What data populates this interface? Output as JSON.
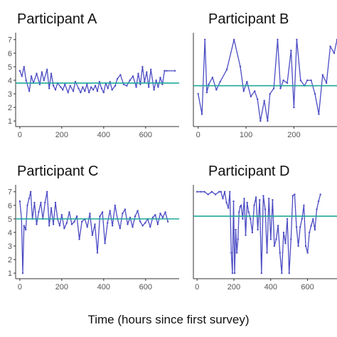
{
  "xlabel": "Time (hours since first survey)",
  "colors": {
    "series": "#4c4cc4",
    "mean": "#1fa89a",
    "axis": "#333333",
    "tick": "#555555"
  },
  "chart_data": [
    {
      "type": "line",
      "title": "Participant A",
      "xlim": [
        -20,
        760
      ],
      "ylim": [
        0.8,
        7.3
      ],
      "xticks": [
        0,
        200,
        400,
        600
      ],
      "yticks": [
        1,
        2,
        3,
        4,
        5,
        6,
        7
      ],
      "mean": 3.8,
      "grid": false,
      "series": [
        {
          "x": [
            0,
            10,
            20,
            30,
            45,
            55,
            65,
            80,
            95,
            105,
            115,
            130,
            140,
            150,
            160,
            170,
            180,
            195,
            205,
            215,
            230,
            240,
            255,
            265,
            280,
            290,
            300,
            310,
            320,
            330,
            340,
            350,
            360,
            370,
            380,
            390,
            400,
            410,
            420,
            430,
            440,
            455,
            465,
            480,
            495,
            510,
            525,
            540,
            555,
            565,
            575,
            585,
            595,
            605,
            615,
            625,
            640,
            650,
            660,
            670,
            680,
            690,
            700,
            740
          ],
          "y": [
            4.7,
            4.3,
            5.0,
            4.0,
            3.2,
            4.3,
            3.8,
            4.5,
            3.7,
            4.6,
            4.0,
            4.8,
            3.4,
            4.5,
            3.6,
            3.3,
            3.8,
            3.5,
            3.3,
            3.7,
            3.1,
            3.6,
            3.2,
            3.9,
            3.4,
            3.1,
            3.5,
            3.2,
            3.7,
            3.1,
            3.5,
            3.3,
            3.6,
            3.2,
            3.9,
            3.4,
            3.1,
            3.8,
            3.4,
            3.9,
            3.3,
            3.6,
            4.1,
            4.4,
            3.7,
            3.6,
            4.0,
            4.3,
            3.5,
            4.5,
            3.7,
            5.0,
            3.9,
            4.6,
            3.5,
            4.8,
            3.3,
            4.0,
            3.5,
            4.2,
            3.7,
            4.7,
            4.7,
            4.7
          ]
        }
      ]
    },
    {
      "type": "line",
      "title": "Participant B",
      "xlim": [
        -10,
        290
      ],
      "ylim": [
        0.8,
        7.3
      ],
      "xticks": [
        0,
        100,
        200
      ],
      "yticks": [],
      "mean": 3.6,
      "grid": false,
      "series": [
        {
          "x": [
            0,
            8,
            14,
            18,
            22,
            30,
            38,
            46,
            60,
            75,
            88,
            95,
            102,
            110,
            118,
            124,
            130,
            138,
            145,
            150,
            158,
            166,
            172,
            178,
            186,
            194,
            200,
            206,
            214,
            222,
            228,
            236,
            244,
            252,
            260,
            268,
            276,
            284,
            290
          ],
          "y": [
            3.0,
            1.5,
            7.0,
            3.1,
            3.7,
            4.2,
            3.3,
            3.9,
            4.8,
            7.0,
            5.0,
            3.2,
            3.9,
            2.8,
            3.2,
            2.6,
            1.0,
            2.5,
            1.0,
            3.0,
            3.4,
            7.0,
            3.4,
            4.0,
            3.8,
            6.2,
            2.0,
            7.0,
            4.0,
            3.6,
            4.0,
            4.0,
            3.0,
            1.5,
            4.4,
            3.8,
            6.5,
            6.0,
            7.0
          ]
        }
      ]
    },
    {
      "type": "line",
      "title": "Participant C",
      "xlim": [
        -20,
        760
      ],
      "ylim": [
        0.8,
        7.3
      ],
      "xticks": [
        0,
        200,
        400,
        600
      ],
      "yticks": [
        1,
        2,
        3,
        4,
        5,
        6,
        7
      ],
      "mean": 5.0,
      "grid": false,
      "series": [
        {
          "x": [
            0,
            8,
            14,
            20,
            28,
            36,
            44,
            52,
            60,
            70,
            80,
            90,
            100,
            110,
            120,
            130,
            140,
            150,
            160,
            170,
            180,
            190,
            200,
            212,
            224,
            236,
            248,
            260,
            272,
            284,
            296,
            310,
            322,
            334,
            346,
            358,
            370,
            382,
            394,
            406,
            418,
            430,
            442,
            454,
            466,
            478,
            490,
            502,
            514,
            526,
            538,
            550,
            562,
            574,
            586,
            598,
            610,
            622,
            634,
            646,
            658,
            670,
            682,
            694,
            706
          ],
          "y": [
            6.3,
            5.0,
            1.0,
            4.5,
            4.2,
            6.0,
            6.5,
            7.0,
            5.0,
            6.2,
            4.6,
            5.5,
            6.2,
            5.0,
            6.2,
            7.0,
            4.5,
            5.8,
            4.6,
            6.2,
            5.0,
            4.5,
            5.3,
            4.3,
            4.7,
            5.5,
            4.6,
            4.8,
            5.2,
            3.5,
            4.8,
            5.0,
            4.4,
            5.4,
            3.8,
            4.6,
            2.5,
            5.2,
            5.5,
            3.2,
            4.7,
            5.6,
            4.5,
            6.0,
            5.0,
            4.3,
            5.4,
            5.7,
            4.6,
            5.1,
            4.4,
            5.2,
            5.6,
            4.8,
            4.5,
            4.7,
            5.0,
            4.4,
            5.1,
            5.3,
            4.6,
            5.4,
            5.1,
            5.5,
            4.8
          ]
        }
      ]
    },
    {
      "type": "line",
      "title": "Participant D",
      "xlim": [
        -20,
        760
      ],
      "ylim": [
        0.8,
        7.3
      ],
      "xticks": [
        0,
        200,
        400,
        600
      ],
      "yticks": [],
      "mean": 5.2,
      "grid": false,
      "series": [
        {
          "x": [
            0,
            20,
            40,
            60,
            80,
            100,
            120,
            130,
            140,
            150,
            160,
            170,
            178,
            186,
            192,
            198,
            204,
            210,
            216,
            222,
            228,
            234,
            240,
            248,
            256,
            264,
            272,
            280,
            290,
            300,
            310,
            320,
            330,
            340,
            350,
            360,
            370,
            380,
            390,
            400,
            410,
            420,
            430,
            440,
            450,
            460,
            470,
            480,
            490,
            500,
            510,
            520,
            530,
            540,
            550,
            560,
            570,
            580,
            590,
            600,
            610,
            620,
            630,
            640,
            650,
            660,
            670
          ],
          "y": [
            7.0,
            7.0,
            7.0,
            6.8,
            7.0,
            6.8,
            7.0,
            7.0,
            6.5,
            7.0,
            6.2,
            5.8,
            7.0,
            2.5,
            1.0,
            6.3,
            1.0,
            4.2,
            2.5,
            3.5,
            5.5,
            5.9,
            6.0,
            5.0,
            6.5,
            3.8,
            6.2,
            5.5,
            5.0,
            4.0,
            6.0,
            6.6,
            4.2,
            6.4,
            1.0,
            6.7,
            5.7,
            2.5,
            6.5,
            3.5,
            6.4,
            3.0,
            3.5,
            4.5,
            2.5,
            1.0,
            4.0,
            3.2,
            5.0,
            1.0,
            3.5,
            6.7,
            6.8,
            4.4,
            3.0,
            4.4,
            5.0,
            6.0,
            3.0,
            2.5,
            4.0,
            4.5,
            5.0,
            4.2,
            5.7,
            6.3,
            6.8
          ]
        }
      ]
    }
  ]
}
